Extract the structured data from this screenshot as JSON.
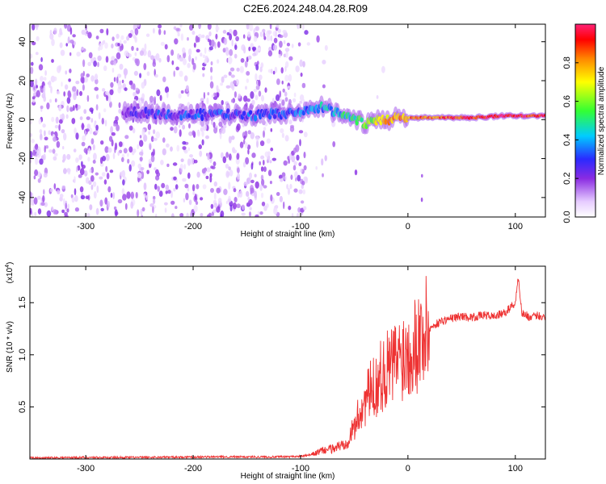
{
  "title": "C2E6.2024.248.04.28.R09",
  "chart_data": [
    {
      "type": "heatmap",
      "xlabel": "Height of straight line (km)",
      "ylabel": "Frequency (Hz)",
      "xlim": [
        -352,
        128
      ],
      "ylim": [
        -50,
        49
      ],
      "xticks": [
        -300,
        -200,
        -100,
        0,
        100
      ],
      "yticks": [
        -40,
        -20,
        0,
        20,
        40
      ],
      "colorbar": {
        "label": "Normalized spectral amplitude",
        "range": [
          0,
          1
        ],
        "ticks": [
          "0.0",
          "0.2",
          "0.4",
          "0.6",
          "0.8"
        ]
      },
      "ridge": [
        {
          "x": -265,
          "f": 4,
          "amp": 0.22
        },
        {
          "x": -240,
          "f": 3,
          "amp": 0.25
        },
        {
          "x": -210,
          "f": 2,
          "amp": 0.3
        },
        {
          "x": -180,
          "f": 3,
          "amp": 0.28
        },
        {
          "x": -150,
          "f": 2,
          "amp": 0.3
        },
        {
          "x": -120,
          "f": 3,
          "amp": 0.32
        },
        {
          "x": -100,
          "f": 4,
          "amp": 0.35
        },
        {
          "x": -80,
          "f": 6,
          "amp": 0.4
        },
        {
          "x": -60,
          "f": 3,
          "amp": 0.45
        },
        {
          "x": -40,
          "f": -2,
          "amp": 0.55
        },
        {
          "x": -20,
          "f": 0,
          "amp": 0.75
        },
        {
          "x": 0,
          "f": 1,
          "amp": 0.8
        },
        {
          "x": 30,
          "f": 1,
          "amp": 0.85
        },
        {
          "x": 60,
          "f": 1,
          "amp": 0.9
        },
        {
          "x": 90,
          "f": 2,
          "amp": 0.95
        },
        {
          "x": 125,
          "f": 2,
          "amp": 0.9
        }
      ]
    },
    {
      "type": "line",
      "xlabel": "Height of straight line (km)",
      "ylabel": "SNR (10 * v/v)",
      "y_multiplier_label": "(x10",
      "y_multiplier_exp": "4",
      "y_multiplier_close": ")",
      "xlim": [
        -352,
        128
      ],
      "ylim": [
        0,
        1.85
      ],
      "xticks": [
        -300,
        -200,
        -100,
        0,
        100
      ],
      "yticks": [
        "0.5",
        "1.0",
        "1.5"
      ],
      "series": [
        {
          "color": "#ee3333",
          "x": [
            -352,
            -300,
            -250,
            -200,
            -150,
            -120,
            -100,
            -90,
            -80,
            -70,
            -60,
            -55,
            -50,
            -45,
            -40,
            -35,
            -30,
            -25,
            -20,
            -15,
            -10,
            -5,
            0,
            5,
            10,
            15,
            20,
            30,
            40,
            50,
            60,
            70,
            80,
            90,
            95,
            100,
            103,
            106,
            110,
            115,
            120,
            128
          ],
          "y": [
            0.01,
            0.015,
            0.015,
            0.02,
            0.02,
            0.02,
            0.025,
            0.04,
            0.08,
            0.1,
            0.14,
            0.2,
            0.3,
            0.45,
            0.55,
            0.65,
            0.7,
            0.8,
            0.85,
            0.9,
            0.95,
            1.0,
            1.05,
            1.1,
            1.15,
            1.2,
            1.25,
            1.32,
            1.35,
            1.37,
            1.36,
            1.38,
            1.37,
            1.4,
            1.45,
            1.5,
            1.75,
            1.4,
            1.38,
            1.35,
            1.38,
            1.36
          ]
        }
      ]
    }
  ]
}
